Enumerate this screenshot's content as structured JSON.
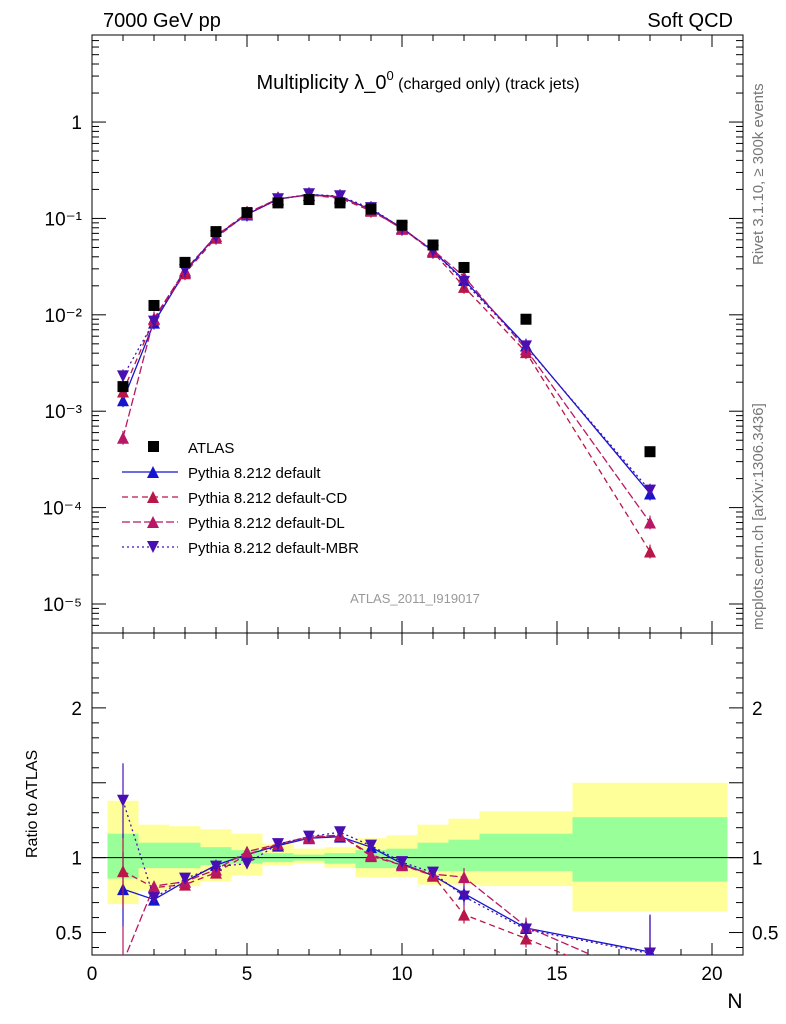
{
  "header": {
    "left": "7000 GeV pp",
    "right": "Soft QCD"
  },
  "side_labels": {
    "rivet": "Rivet 3.1.10, ≥ 300k events",
    "mcplots": "mcplots.cern.ch [arXiv:1306.3436]"
  },
  "watermark": "ATLAS_2011_I919017",
  "chart_data": {
    "type": "line",
    "title": "Multiplicity λ_0",
    "title_sup": "0",
    "title_rest": " (charged only) (track jets)",
    "xlabel": "N",
    "ylabel_ratio": "Ratio to ATLAS",
    "xlim": [
      0,
      21
    ],
    "ylim": [
      5e-06,
      8
    ],
    "ratio_ylim": [
      0.35,
      2.5
    ],
    "x_tick_labels": [
      "0",
      "5",
      "10",
      "15",
      "20"
    ],
    "y_tick_labels": [
      "10⁻⁵",
      "10⁻⁴",
      "10⁻³",
      "10⁻²",
      "10⁻¹",
      "1"
    ],
    "ratio_tick_labels": [
      "0.5",
      "1",
      "2"
    ],
    "x": [
      1,
      2,
      3,
      4,
      5,
      6,
      7,
      8,
      9,
      10,
      11,
      12,
      14,
      18
    ],
    "data": {
      "name": "ATLAS",
      "values": [
        0.0018,
        0.0125,
        0.035,
        0.073,
        0.115,
        0.145,
        0.157,
        0.145,
        0.125,
        0.085,
        0.053,
        0.031,
        0.009,
        0.00038
      ]
    },
    "series": [
      {
        "name": "Pythia 8.212 default",
        "color": "#1515d0",
        "dash": "solid",
        "values": [
          0.0013,
          0.0083,
          0.028,
          0.066,
          0.11,
          0.158,
          0.177,
          0.168,
          0.124,
          0.08,
          0.046,
          0.023,
          0.0048,
          0.00014
        ],
        "ratio": [
          0.79,
          0.72,
          0.84,
          0.95,
          1.02,
          1.08,
          1.13,
          1.14,
          1.07,
          0.96,
          0.88,
          0.76,
          0.53,
          0.37
        ]
      },
      {
        "name": "Pythia 8.212 default-CD",
        "color": "#b81747",
        "dash": "6,4",
        "values": [
          0.0016,
          0.009,
          0.027,
          0.063,
          0.112,
          0.16,
          0.175,
          0.162,
          0.12,
          0.079,
          0.045,
          0.0195,
          0.0041,
          3.5e-05
        ],
        "ratio": [
          0.91,
          0.8,
          0.82,
          0.9,
          1.02,
          1.09,
          1.13,
          1.15,
          1.01,
          0.95,
          0.88,
          0.62,
          0.46,
          0.12
        ]
      },
      {
        "name": "Pythia 8.212 default-DL",
        "color": "#b81765",
        "dash": "8,3",
        "values": [
          0.00053,
          0.0092,
          0.029,
          0.066,
          0.114,
          0.16,
          0.175,
          0.166,
          0.122,
          0.078,
          0.047,
          0.025,
          0.0044,
          7e-05
        ],
        "ratio": [
          0.3,
          0.81,
          0.84,
          0.92,
          1.04,
          1.09,
          1.14,
          1.15,
          1.02,
          0.95,
          0.89,
          0.87,
          0.54,
          0.18
        ]
      },
      {
        "name": "Pythia 8.212 default-MBR",
        "color": "#4a0fb0",
        "dash": "2,3",
        "values": [
          0.0023,
          0.0085,
          0.029,
          0.065,
          0.11,
          0.158,
          0.178,
          0.17,
          0.128,
          0.079,
          0.046,
          0.022,
          0.0047,
          0.00015
        ],
        "ratio": [
          1.38,
          0.73,
          0.86,
          0.94,
          0.96,
          1.09,
          1.14,
          1.17,
          1.08,
          0.97,
          0.9,
          0.74,
          0.52,
          0.36
        ]
      }
    ],
    "uncertainty_bands": {
      "bins": [
        [
          0.5,
          1.5
        ],
        [
          1.5,
          2.5
        ],
        [
          2.5,
          3.5
        ],
        [
          3.5,
          4.5
        ],
        [
          4.5,
          5.5
        ],
        [
          5.5,
          6.5
        ],
        [
          6.5,
          7.5
        ],
        [
          7.5,
          8.5
        ],
        [
          8.5,
          9.5
        ],
        [
          9.5,
          10.5
        ],
        [
          10.5,
          11.5
        ],
        [
          11.5,
          12.5
        ],
        [
          12.5,
          15.5
        ],
        [
          15.5,
          20.5
        ]
      ],
      "inner": [
        [
          0.86,
          1.16
        ],
        [
          0.93,
          1.1
        ],
        [
          0.93,
          1.1
        ],
        [
          0.95,
          1.07
        ],
        [
          0.96,
          1.05
        ],
        [
          0.97,
          1.03
        ],
        [
          0.98,
          1.02
        ],
        [
          0.96,
          1.03
        ],
        [
          0.93,
          1.05
        ],
        [
          0.93,
          1.06
        ],
        [
          0.91,
          1.1
        ],
        [
          0.91,
          1.12
        ],
        [
          0.91,
          1.16
        ],
        [
          0.84,
          1.27
        ]
      ],
      "outer": [
        [
          0.69,
          1.38
        ],
        [
          0.78,
          1.22
        ],
        [
          0.81,
          1.21
        ],
        [
          0.84,
          1.19
        ],
        [
          0.88,
          1.16
        ],
        [
          0.95,
          1.09
        ],
        [
          0.96,
          1.06
        ],
        [
          0.93,
          1.07
        ],
        [
          0.87,
          1.13
        ],
        [
          0.87,
          1.15
        ],
        [
          0.82,
          1.22
        ],
        [
          0.82,
          1.26
        ],
        [
          0.81,
          1.31
        ],
        [
          0.64,
          1.5
        ]
      ]
    }
  }
}
